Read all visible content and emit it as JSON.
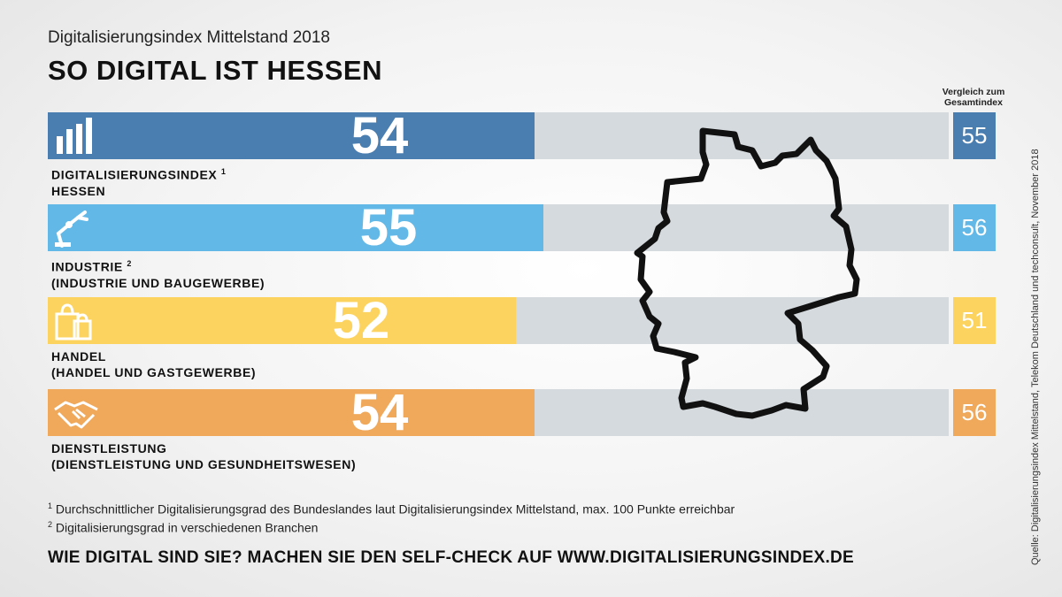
{
  "subtitle": "Digitalisierungsindex Mittelstand 2018",
  "title": "SO DIGITAL IST HESSEN",
  "comparison_header": "Vergleich zum Gesamtindex",
  "chart_data": {
    "type": "bar",
    "orientation": "horizontal",
    "xlim": [
      0,
      100
    ],
    "categories": [
      "DIGITALISIERUNGSINDEX HESSEN",
      "INDUSTRIE (INDUSTRIE UND BAUGEWERBE)",
      "HANDEL (HANDEL UND GASTGEWERBE)",
      "DIENSTLEISTUNG (DIENSTLEISTUNG UND GESUNDHEITSWESEN)"
    ],
    "bars": [
      {
        "label_line1": "DIGITALISIERUNGSINDEX",
        "footnote": "1",
        "label_line2": "HESSEN",
        "value": 54,
        "comparison": 55,
        "color": "#4a7eb1",
        "icon": "bar-chart-icon"
      },
      {
        "label_line1": "INDUSTRIE",
        "footnote": "2",
        "label_line2": "(INDUSTRIE UND BAUGEWERBE)",
        "value": 55,
        "comparison": 56,
        "color": "#62b8e7",
        "icon": "robot-arm-icon"
      },
      {
        "label_line1": "HANDEL",
        "footnote": "",
        "label_line2": "(HANDEL UND GASTGEWERBE)",
        "value": 52,
        "comparison": 51,
        "color": "#fdd35f",
        "icon": "shopping-bags-icon"
      },
      {
        "label_line1": "DIENSTLEISTUNG",
        "footnote": "",
        "label_line2": "(DIENSTLEISTUNG UND GESUNDHEITSWESEN)",
        "value": 54,
        "comparison": 56,
        "color": "#f0a85a",
        "icon": "handshake-icon"
      }
    ],
    "track_color": "#d5dade"
  },
  "footnotes": [
    {
      "mark": "1",
      "text": "Durchschnittlicher Digitalisierungsgrad des Bundeslandes laut Digitalisierungsindex Mittelstand, max. 100 Punkte erreichbar"
    },
    {
      "mark": "2",
      "text": "Digitalisierungsgrad in verschiedenen Branchen"
    }
  ],
  "cta": "WIE DIGITAL SIND SIE? MACHEN SIE DEN SELF-CHECK AUF WWW.DIGITALISIERUNGSINDEX.DE",
  "source": "Quelle: Digitalisierungsindex Mittelstand, Telekom Deutschland und techconsult, November 2018",
  "map_icon": "germany-map-icon"
}
